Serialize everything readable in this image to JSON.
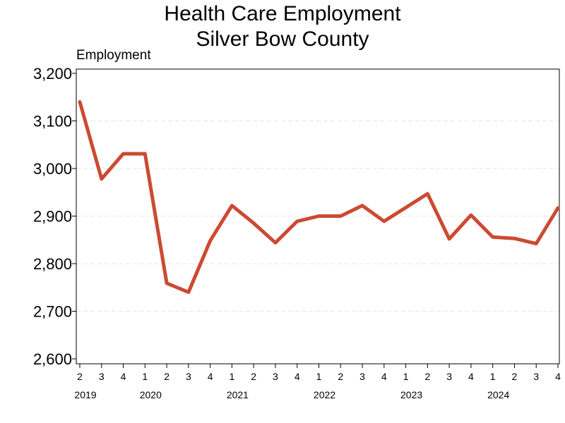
{
  "chart_data": {
    "type": "line",
    "title": "Health Care Employment",
    "subtitle": "Silver Bow County",
    "ylabel": "Employment",
    "xlabel": "",
    "ylim": [
      2600,
      3200
    ],
    "yticks": [
      "2,600",
      "2,700",
      "2,800",
      "2,900",
      "3,000",
      "3,100",
      "3,200"
    ],
    "ytick_values": [
      2600,
      2700,
      2800,
      2900,
      3000,
      3100,
      3200
    ],
    "grid": "horizontal dashed",
    "x": [
      "2019 Q2",
      "2019 Q3",
      "2019 Q4",
      "2020 Q1",
      "2020 Q2",
      "2020 Q3",
      "2020 Q4",
      "2021 Q1",
      "2021 Q2",
      "2021 Q3",
      "2021 Q4",
      "2022 Q1",
      "2022 Q2",
      "2022 Q3",
      "2022 Q4",
      "2023 Q1",
      "2023 Q2",
      "2023 Q3",
      "2023 Q4",
      "2024 Q1",
      "2024 Q2",
      "2024 Q3",
      "2024 Q4"
    ],
    "quarter_labels": [
      "2",
      "3",
      "4",
      "1",
      "2",
      "3",
      "4",
      "1",
      "2",
      "3",
      "4",
      "1",
      "2",
      "3",
      "4",
      "1",
      "2",
      "3",
      "4",
      "1",
      "2",
      "3",
      "4"
    ],
    "year_labels": [
      {
        "label": "2019",
        "index": 0
      },
      {
        "label": "2020",
        "index": 3
      },
      {
        "label": "2021",
        "index": 7
      },
      {
        "label": "2022",
        "index": 11
      },
      {
        "label": "2023",
        "index": 15
      },
      {
        "label": "2024",
        "index": 19
      }
    ],
    "series": [
      {
        "values": [
          3140,
          2978,
          3031,
          3031,
          2759,
          2740,
          2848,
          2922,
          2885,
          2844,
          2889,
          2900,
          2900,
          2922,
          2889,
          2918,
          2947,
          2852,
          2902,
          2856,
          2853,
          2842,
          2917
        ],
        "color": "#cc4a32"
      }
    ]
  }
}
